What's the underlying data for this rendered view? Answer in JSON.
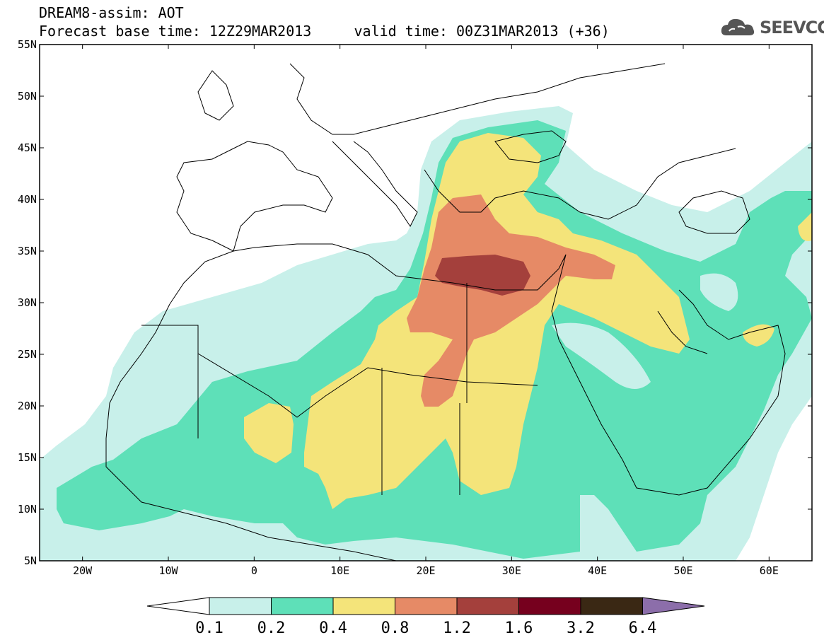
{
  "header": {
    "title_line1": "DREAM8-assim: AOT",
    "title_line2": "Forecast base time: 12Z29MAR2013     valid time: 00Z31MAR2013 (+36)"
  },
  "logo": {
    "text": "SEEVCCC",
    "icon": "cloud-icon"
  },
  "map": {
    "region": "North Africa, Mediterranean, Middle East",
    "lon_range": [
      -25,
      65
    ],
    "lat_range": [
      5,
      55
    ],
    "lat_ticks": [
      "55N",
      "50N",
      "45N",
      "40N",
      "35N",
      "30N",
      "25N",
      "20N",
      "15N",
      "10N",
      "5N"
    ],
    "lon_ticks": [
      "20W",
      "10W",
      "0",
      "10E",
      "20E",
      "30E",
      "40E",
      "50E",
      "60E"
    ]
  },
  "colorbar": {
    "labels": [
      "0.1",
      "0.2",
      "0.4",
      "0.8",
      "1.2",
      "1.6",
      "3.2",
      "6.4"
    ],
    "colors": {
      "under": "#ffffff",
      "c1": "#c8f0ea",
      "c2": "#5ee0b8",
      "c3": "#f4e47a",
      "c4": "#e68a66",
      "c5": "#a4403c",
      "c6": "#76001e",
      "c7": "#3a2814",
      "over": "#8c6eaa"
    }
  }
}
